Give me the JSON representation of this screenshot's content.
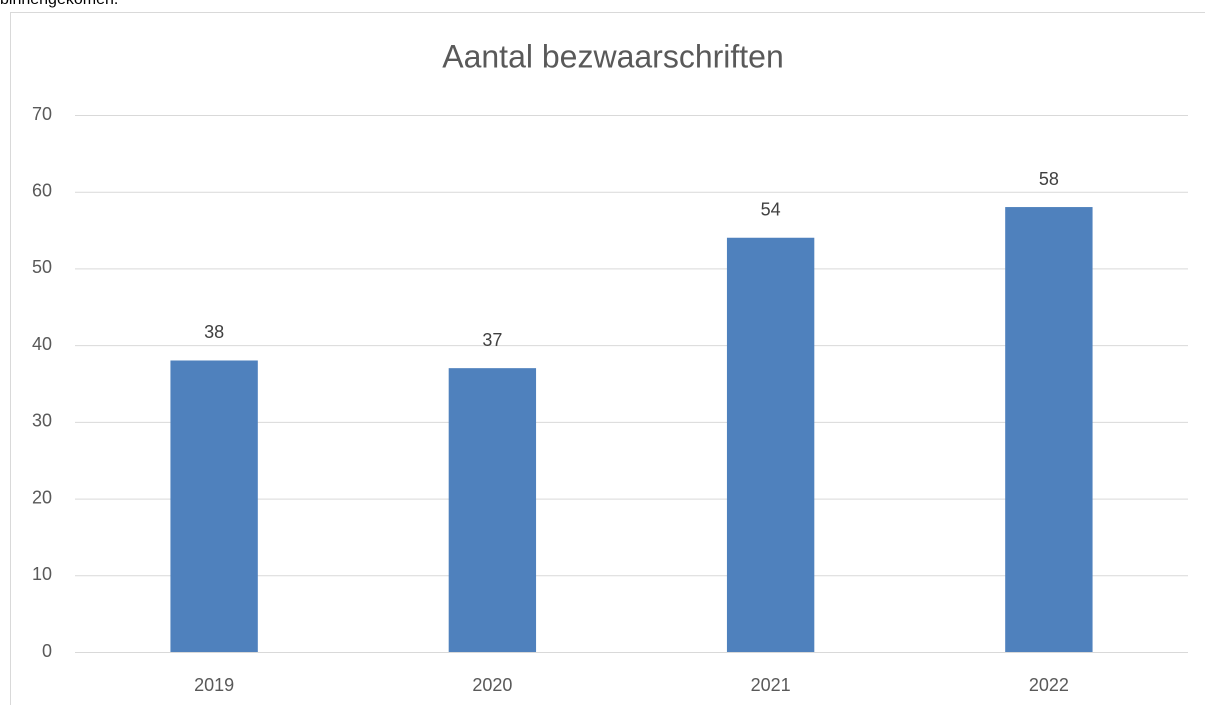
{
  "header_text": "binnengekomen.",
  "chart_data": {
    "type": "bar",
    "title": "Aantal bezwaarschriften",
    "categories": [
      "2019",
      "2020",
      "2021",
      "2022"
    ],
    "values": [
      38,
      37,
      54,
      58
    ],
    "color": "#4f81bd",
    "ylim": [
      0,
      70
    ],
    "yticks": [
      0,
      10,
      20,
      30,
      40,
      50,
      60,
      70
    ],
    "grid": true,
    "data_labels": true
  }
}
